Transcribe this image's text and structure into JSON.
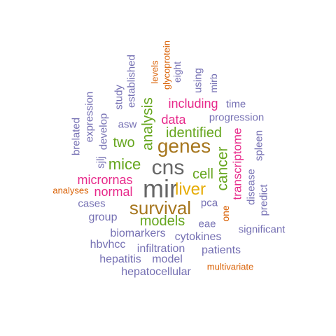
{
  "palette": {
    "purple": "#7570b3",
    "magenta": "#e7298a",
    "green": "#66a61e",
    "orange": "#d95f02",
    "brown": "#a6761d",
    "gold": "#e6ab02",
    "gray": "#666666"
  },
  "words": [
    {
      "text": "mir",
      "color": "gray"
    },
    {
      "text": "cns",
      "color": "gray"
    },
    {
      "text": "survival",
      "color": "brown"
    },
    {
      "text": "genes",
      "color": "brown"
    },
    {
      "text": "liver",
      "color": "gold"
    },
    {
      "text": "cancer",
      "color": "green"
    },
    {
      "text": "analysis",
      "color": "green"
    },
    {
      "text": "mice",
      "color": "green"
    },
    {
      "text": "models",
      "color": "green"
    },
    {
      "text": "identified",
      "color": "green"
    },
    {
      "text": "two",
      "color": "green"
    },
    {
      "text": "cell",
      "color": "green"
    },
    {
      "text": "transcriptome",
      "color": "magenta"
    },
    {
      "text": "micrornas",
      "color": "magenta"
    },
    {
      "text": "normal",
      "color": "magenta"
    },
    {
      "text": "including",
      "color": "magenta"
    },
    {
      "text": "data",
      "color": "magenta"
    },
    {
      "text": "one",
      "color": "orange"
    },
    {
      "text": "analyses",
      "color": "orange"
    },
    {
      "text": "glycoprotein",
      "color": "orange"
    },
    {
      "text": "levels",
      "color": "orange"
    },
    {
      "text": "multivariate",
      "color": "orange"
    },
    {
      "text": "hepatocellular",
      "color": "purple"
    },
    {
      "text": "hepatitis",
      "color": "purple"
    },
    {
      "text": "model",
      "color": "purple"
    },
    {
      "text": "infiltration",
      "color": "purple"
    },
    {
      "text": "patients",
      "color": "purple"
    },
    {
      "text": "hbvhcc",
      "color": "purple"
    },
    {
      "text": "cytokines",
      "color": "purple"
    },
    {
      "text": "biomarkers",
      "color": "purple"
    },
    {
      "text": "significant",
      "color": "purple"
    },
    {
      "text": "eae",
      "color": "purple"
    },
    {
      "text": "group",
      "color": "purple"
    },
    {
      "text": "pca",
      "color": "purple"
    },
    {
      "text": "cases",
      "color": "purple"
    },
    {
      "text": "predict",
      "color": "purple"
    },
    {
      "text": "disease",
      "color": "purple"
    },
    {
      "text": "spleen",
      "color": "purple"
    },
    {
      "text": "progression",
      "color": "purple"
    },
    {
      "text": "time",
      "color": "purple"
    },
    {
      "text": "mirb",
      "color": "purple"
    },
    {
      "text": "using",
      "color": "purple"
    },
    {
      "text": "eight",
      "color": "purple"
    },
    {
      "text": "established",
      "color": "purple"
    },
    {
      "text": "study",
      "color": "purple"
    },
    {
      "text": "asw",
      "color": "purple"
    },
    {
      "text": "develop",
      "color": "purple"
    },
    {
      "text": "expression",
      "color": "purple"
    },
    {
      "text": "brelated",
      "color": "purple"
    },
    {
      "text": "sjlj",
      "color": "purple"
    }
  ]
}
